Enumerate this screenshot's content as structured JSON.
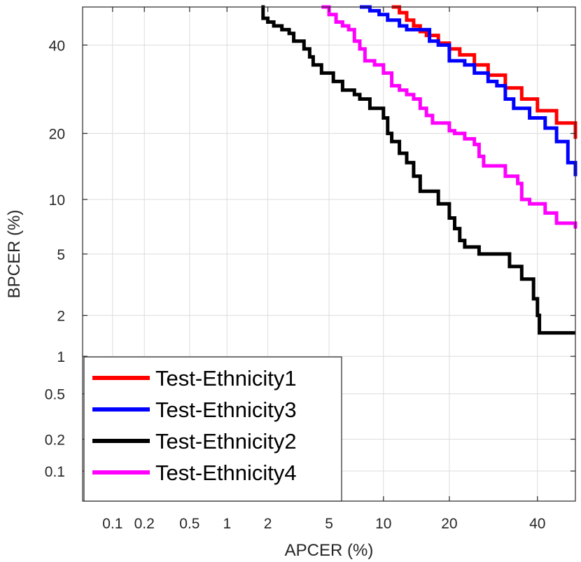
{
  "chart_data": {
    "type": "line",
    "title": "",
    "xlabel": "APCER (%)",
    "ylabel": "BPCER (%)",
    "xscale": "normal-deviate (probit)",
    "yscale": "normal-deviate (probit)",
    "xlim": [
      0.05,
      50
    ],
    "ylim": [
      0.05,
      50
    ],
    "grid": true,
    "xticks": [
      0.1,
      0.2,
      0.5,
      1,
      2,
      5,
      10,
      20,
      40
    ],
    "xtick_labels": [
      "0.1",
      "0.2",
      "0.5",
      "1",
      "2",
      "5",
      "10",
      "20",
      "40"
    ],
    "yticks": [
      0.1,
      0.2,
      0.5,
      1,
      2,
      5,
      10,
      20,
      40
    ],
    "ytick_labels": [
      "0.1",
      "0.2",
      "0.5",
      "1",
      "2",
      "5",
      "10",
      "20",
      "40"
    ],
    "legend_position": "bottom-left",
    "series": [
      {
        "name": "Test-Ethnicity1",
        "color": "#ff0000",
        "points": [
          [
            11,
            50
          ],
          [
            12,
            48.5
          ],
          [
            13,
            46.5
          ],
          [
            14,
            45
          ],
          [
            15,
            43.5
          ],
          [
            16,
            42.5
          ],
          [
            18,
            40.5
          ],
          [
            20,
            39
          ],
          [
            22,
            37.5
          ],
          [
            25,
            35
          ],
          [
            28,
            32.5
          ],
          [
            32,
            29.5
          ],
          [
            36,
            27
          ],
          [
            40,
            24.5
          ],
          [
            45,
            22
          ],
          [
            50,
            19
          ]
        ]
      },
      {
        "name": "Test-Ethnicity3",
        "color": "#0000ff",
        "points": [
          [
            7.5,
            50
          ],
          [
            8,
            50
          ],
          [
            8.5,
            49
          ],
          [
            9.5,
            48
          ],
          [
            10.5,
            46.5
          ],
          [
            11.5,
            46.5
          ],
          [
            12,
            45
          ],
          [
            13,
            44
          ],
          [
            15,
            44
          ],
          [
            16.5,
            41
          ],
          [
            18,
            40
          ],
          [
            20,
            36
          ],
          [
            22,
            36
          ],
          [
            23,
            35
          ],
          [
            25,
            33
          ],
          [
            28,
            31
          ],
          [
            30,
            30
          ],
          [
            32,
            27
          ],
          [
            34,
            25
          ],
          [
            38,
            23
          ],
          [
            42,
            21
          ],
          [
            45,
            18.5
          ],
          [
            48,
            15
          ],
          [
            50,
            13
          ]
        ]
      },
      {
        "name": "Test-Ethnicity2",
        "color": "#000000",
        "points": [
          [
            1.8,
            50
          ],
          [
            1.85,
            47
          ],
          [
            2,
            46
          ],
          [
            2.2,
            45
          ],
          [
            2.5,
            44
          ],
          [
            2.8,
            43
          ],
          [
            3,
            41
          ],
          [
            3.5,
            39
          ],
          [
            3.8,
            37
          ],
          [
            4,
            35
          ],
          [
            4.5,
            33
          ],
          [
            5,
            33
          ],
          [
            5.3,
            31
          ],
          [
            6,
            29
          ],
          [
            6.5,
            29
          ],
          [
            7,
            28
          ],
          [
            7.5,
            27
          ],
          [
            8.5,
            25
          ],
          [
            9,
            25
          ],
          [
            10,
            23
          ],
          [
            10.5,
            20
          ],
          [
            11,
            18.5
          ],
          [
            12,
            16.5
          ],
          [
            13,
            15
          ],
          [
            14,
            13
          ],
          [
            15,
            11
          ],
          [
            17,
            11
          ],
          [
            18,
            9.5
          ],
          [
            20,
            8
          ],
          [
            21,
            7
          ],
          [
            22,
            6
          ],
          [
            23,
            5.5
          ],
          [
            26,
            5
          ],
          [
            30,
            5
          ],
          [
            33,
            4.2
          ],
          [
            36,
            3.5
          ],
          [
            38,
            3.5
          ],
          [
            39,
            2.6
          ],
          [
            40,
            2
          ],
          [
            40.5,
            1.5
          ],
          [
            50,
            1.5
          ]
        ]
      },
      {
        "name": "Test-Ethnicity4",
        "color": "#ff00ff",
        "points": [
          [
            4.5,
            50
          ],
          [
            5,
            48
          ],
          [
            5.5,
            46
          ],
          [
            6,
            45
          ],
          [
            6.5,
            44
          ],
          [
            7,
            41
          ],
          [
            7.5,
            39
          ],
          [
            8,
            36
          ],
          [
            9,
            35
          ],
          [
            10,
            33
          ],
          [
            11,
            30
          ],
          [
            12,
            29
          ],
          [
            13,
            28
          ],
          [
            14,
            27
          ],
          [
            15,
            25
          ],
          [
            16,
            23.5
          ],
          [
            17,
            22
          ],
          [
            18,
            22
          ],
          [
            20,
            20.5
          ],
          [
            21,
            20
          ],
          [
            23,
            19
          ],
          [
            25,
            18
          ],
          [
            26,
            16
          ],
          [
            27,
            14.5
          ],
          [
            30,
            14.5
          ],
          [
            32,
            13
          ],
          [
            35,
            12
          ],
          [
            36,
            10
          ],
          [
            38,
            9.5
          ],
          [
            42,
            8.5
          ],
          [
            45,
            7.5
          ],
          [
            48,
            7.5
          ],
          [
            50,
            7
          ]
        ]
      }
    ]
  }
}
